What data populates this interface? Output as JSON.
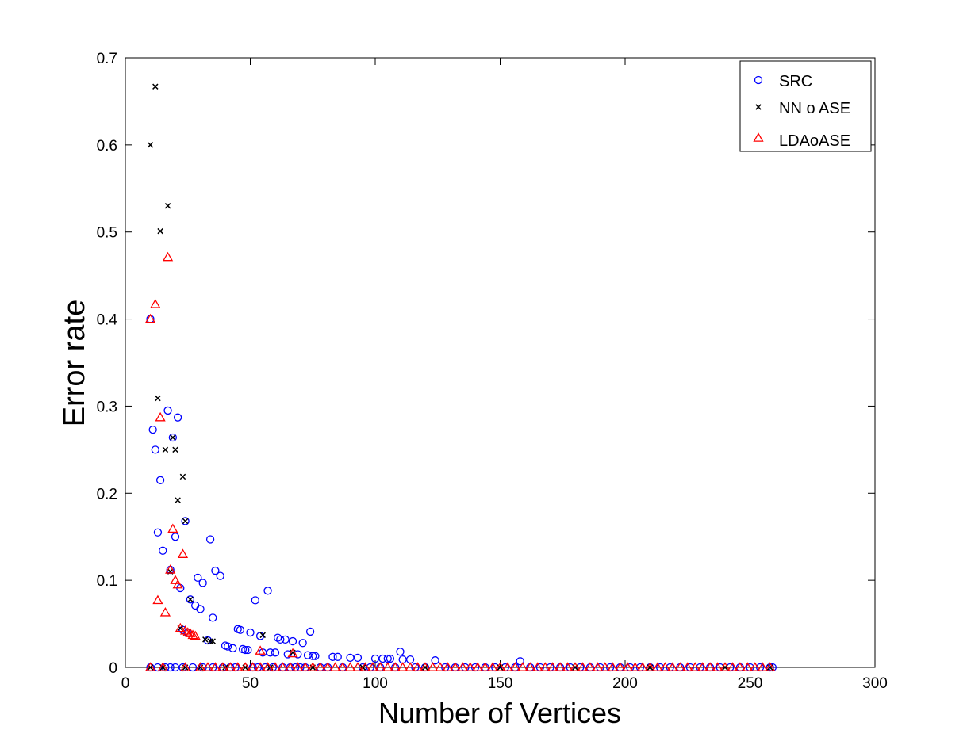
{
  "chart_data": {
    "type": "scatter",
    "title": "",
    "xlabel": "Number of Vertices",
    "ylabel": "Error rate",
    "xlim": [
      0,
      300
    ],
    "ylim": [
      0,
      0.7
    ],
    "xticks": [
      "0",
      "50",
      "100",
      "150",
      "200",
      "250",
      "300"
    ],
    "yticks": [
      "0",
      "0.1",
      "0.2",
      "0.3",
      "0.4",
      "0.5",
      "0.6",
      "0.7"
    ],
    "grid": false,
    "legend_position": "top-right",
    "series": [
      {
        "name": "SRC",
        "marker": "circle",
        "color": "#0000ff",
        "points": [
          [
            10,
            0.4
          ],
          [
            11,
            0.273
          ],
          [
            12,
            0.25
          ],
          [
            13,
            0.155
          ],
          [
            14,
            0.215
          ],
          [
            15,
            0.134
          ],
          [
            17,
            0.295
          ],
          [
            18,
            0.112
          ],
          [
            19,
            0.264
          ],
          [
            20,
            0.15
          ],
          [
            21,
            0.287
          ],
          [
            22,
            0.091
          ],
          [
            23,
            0.043
          ],
          [
            24,
            0.168
          ],
          [
            25,
            0.04
          ],
          [
            26,
            0.078
          ],
          [
            28,
            0.071
          ],
          [
            29,
            0.103
          ],
          [
            30,
            0.067
          ],
          [
            31,
            0.097
          ],
          [
            33,
            0.031
          ],
          [
            34,
            0.147
          ],
          [
            35,
            0.057
          ],
          [
            36,
            0.111
          ],
          [
            38,
            0.105
          ],
          [
            40,
            0.025
          ],
          [
            41,
            0.024
          ],
          [
            43,
            0.022
          ],
          [
            45,
            0.044
          ],
          [
            46,
            0.043
          ],
          [
            47,
            0.021
          ],
          [
            48,
            0.02
          ],
          [
            49,
            0.02
          ],
          [
            50,
            0.04
          ],
          [
            52,
            0.077
          ],
          [
            54,
            0.036
          ],
          [
            55,
            0.017
          ],
          [
            57,
            0.088
          ],
          [
            58,
            0.017
          ],
          [
            60,
            0.017
          ],
          [
            61,
            0.034
          ],
          [
            62,
            0.032
          ],
          [
            64,
            0.032
          ],
          [
            65,
            0.015
          ],
          [
            67,
            0.03
          ],
          [
            69,
            0.015
          ],
          [
            71,
            0.028
          ],
          [
            73,
            0.014
          ],
          [
            74,
            0.041
          ],
          [
            75,
            0.013
          ],
          [
            76,
            0.013
          ],
          [
            83,
            0.012
          ],
          [
            85,
            0.012
          ],
          [
            90,
            0.011
          ],
          [
            93,
            0.011
          ],
          [
            100,
            0.01
          ],
          [
            103,
            0.01
          ],
          [
            105,
            0.01
          ],
          [
            106,
            0.01
          ],
          [
            110,
            0.018
          ],
          [
            111,
            0.009
          ],
          [
            114,
            0.009
          ],
          [
            124,
            0.008
          ],
          [
            158,
            0.007
          ],
          [
            10,
            0.0
          ],
          [
            13,
            0.0
          ],
          [
            16,
            0.0
          ],
          [
            18,
            0.0
          ],
          [
            20,
            0.0
          ],
          [
            23,
            0.0
          ],
          [
            27,
            0.0
          ],
          [
            31,
            0.0
          ],
          [
            35,
            0.0
          ],
          [
            39,
            0.0
          ],
          [
            42,
            0.0
          ],
          [
            44,
            0.0
          ],
          [
            51,
            0.0
          ],
          [
            53,
            0.0
          ],
          [
            56,
            0.0
          ],
          [
            59,
            0.0
          ],
          [
            63,
            0.0
          ],
          [
            66,
            0.0
          ],
          [
            68,
            0.0
          ],
          [
            70,
            0.0
          ],
          [
            72,
            0.0
          ],
          [
            78,
            0.0
          ],
          [
            81,
            0.0
          ],
          [
            87,
            0.0
          ],
          [
            95,
            0.0
          ],
          [
            98,
            0.0
          ],
          [
            102,
            0.0
          ],
          [
            108,
            0.0
          ],
          [
            116,
            0.0
          ],
          [
            120,
            0.0
          ],
          [
            128,
            0.0
          ],
          [
            132,
            0.0
          ],
          [
            136,
            0.0
          ],
          [
            140,
            0.0
          ],
          [
            144,
            0.0
          ],
          [
            148,
            0.0
          ],
          [
            152,
            0.0
          ],
          [
            156,
            0.0
          ],
          [
            162,
            0.0
          ],
          [
            166,
            0.0
          ],
          [
            170,
            0.0
          ],
          [
            174,
            0.0
          ],
          [
            178,
            0.0
          ],
          [
            182,
            0.0
          ],
          [
            186,
            0.0
          ],
          [
            190,
            0.0
          ],
          [
            194,
            0.0
          ],
          [
            198,
            0.0
          ],
          [
            202,
            0.0
          ],
          [
            206,
            0.0
          ],
          [
            210,
            0.0
          ],
          [
            214,
            0.0
          ],
          [
            218,
            0.0
          ],
          [
            222,
            0.0
          ],
          [
            226,
            0.0
          ],
          [
            230,
            0.0
          ],
          [
            234,
            0.0
          ],
          [
            238,
            0.0
          ],
          [
            242,
            0.0
          ],
          [
            246,
            0.0
          ],
          [
            250,
            0.0
          ],
          [
            254,
            0.0
          ],
          [
            258,
            0.0
          ],
          [
            259,
            0.0
          ]
        ]
      },
      {
        "name": "NN o ASE",
        "marker": "x",
        "color": "#000000",
        "points": [
          [
            10,
            0.6
          ],
          [
            12,
            0.667
          ],
          [
            13,
            0.309
          ],
          [
            14,
            0.501
          ],
          [
            16,
            0.25
          ],
          [
            17,
            0.53
          ],
          [
            18,
            0.11
          ],
          [
            19,
            0.264
          ],
          [
            20,
            0.25
          ],
          [
            21,
            0.192
          ],
          [
            22,
            0.045
          ],
          [
            23,
            0.219
          ],
          [
            24,
            0.168
          ],
          [
            26,
            0.078
          ],
          [
            32,
            0.032
          ],
          [
            34,
            0.03
          ],
          [
            35,
            0.03
          ],
          [
            55,
            0.037
          ],
          [
            67,
            0.017
          ],
          [
            10,
            0.0
          ],
          [
            15,
            0.0
          ],
          [
            24,
            0.0
          ],
          [
            30,
            0.0
          ],
          [
            40,
            0.0
          ],
          [
            48,
            0.0
          ],
          [
            58,
            0.0
          ],
          [
            75,
            0.0
          ],
          [
            95,
            0.0
          ],
          [
            120,
            0.0
          ],
          [
            150,
            0.0
          ],
          [
            180,
            0.0
          ],
          [
            210,
            0.0
          ],
          [
            240,
            0.0
          ],
          [
            258,
            0.0
          ]
        ]
      },
      {
        "name": "LDAoASE",
        "marker": "triangle",
        "color": "#ff0000",
        "points": [
          [
            10,
            0.4
          ],
          [
            12,
            0.417
          ],
          [
            13,
            0.077
          ],
          [
            14,
            0.287
          ],
          [
            16,
            0.063
          ],
          [
            17,
            0.471
          ],
          [
            18,
            0.112
          ],
          [
            19,
            0.159
          ],
          [
            20,
            0.1
          ],
          [
            21,
            0.095
          ],
          [
            22,
            0.045
          ],
          [
            23,
            0.13
          ],
          [
            24,
            0.042
          ],
          [
            25,
            0.04
          ],
          [
            26,
            0.039
          ],
          [
            27,
            0.037
          ],
          [
            28,
            0.036
          ],
          [
            54,
            0.019
          ],
          [
            67,
            0.016
          ],
          [
            10,
            0.0
          ],
          [
            15,
            0.0
          ],
          [
            24,
            0.0
          ],
          [
            30,
            0.0
          ],
          [
            33,
            0.0
          ],
          [
            36,
            0.0
          ],
          [
            39,
            0.0
          ],
          [
            42,
            0.0
          ],
          [
            45,
            0.0
          ],
          [
            48,
            0.0
          ],
          [
            51,
            0.0
          ],
          [
            54,
            0.0
          ],
          [
            57,
            0.0
          ],
          [
            60,
            0.0
          ],
          [
            63,
            0.0
          ],
          [
            66,
            0.0
          ],
          [
            69,
            0.0
          ],
          [
            72,
            0.0
          ],
          [
            75,
            0.0
          ],
          [
            78,
            0.0
          ],
          [
            81,
            0.0
          ],
          [
            84,
            0.0
          ],
          [
            87,
            0.0
          ],
          [
            90,
            0.0
          ],
          [
            93,
            0.0
          ],
          [
            96,
            0.0
          ],
          [
            99,
            0.0
          ],
          [
            102,
            0.0
          ],
          [
            105,
            0.0
          ],
          [
            108,
            0.0
          ],
          [
            111,
            0.0
          ],
          [
            114,
            0.0
          ],
          [
            117,
            0.0
          ],
          [
            120,
            0.0
          ],
          [
            123,
            0.0
          ],
          [
            126,
            0.0
          ],
          [
            129,
            0.0
          ],
          [
            132,
            0.0
          ],
          [
            135,
            0.0
          ],
          [
            138,
            0.0
          ],
          [
            141,
            0.0
          ],
          [
            144,
            0.0
          ],
          [
            147,
            0.0
          ],
          [
            150,
            0.0
          ],
          [
            153,
            0.0
          ],
          [
            156,
            0.0
          ],
          [
            159,
            0.0
          ],
          [
            162,
            0.0
          ],
          [
            165,
            0.0
          ],
          [
            168,
            0.0
          ],
          [
            171,
            0.0
          ],
          [
            174,
            0.0
          ],
          [
            177,
            0.0
          ],
          [
            180,
            0.0
          ],
          [
            183,
            0.0
          ],
          [
            186,
            0.0
          ],
          [
            189,
            0.0
          ],
          [
            192,
            0.0
          ],
          [
            195,
            0.0
          ],
          [
            198,
            0.0
          ],
          [
            201,
            0.0
          ],
          [
            204,
            0.0
          ],
          [
            207,
            0.0
          ],
          [
            210,
            0.0
          ],
          [
            213,
            0.0
          ],
          [
            216,
            0.0
          ],
          [
            219,
            0.0
          ],
          [
            222,
            0.0
          ],
          [
            225,
            0.0
          ],
          [
            228,
            0.0
          ],
          [
            231,
            0.0
          ],
          [
            234,
            0.0
          ],
          [
            237,
            0.0
          ],
          [
            240,
            0.0
          ],
          [
            243,
            0.0
          ],
          [
            246,
            0.0
          ],
          [
            249,
            0.0
          ],
          [
            252,
            0.0
          ],
          [
            255,
            0.0
          ],
          [
            258,
            0.0
          ]
        ]
      }
    ]
  }
}
